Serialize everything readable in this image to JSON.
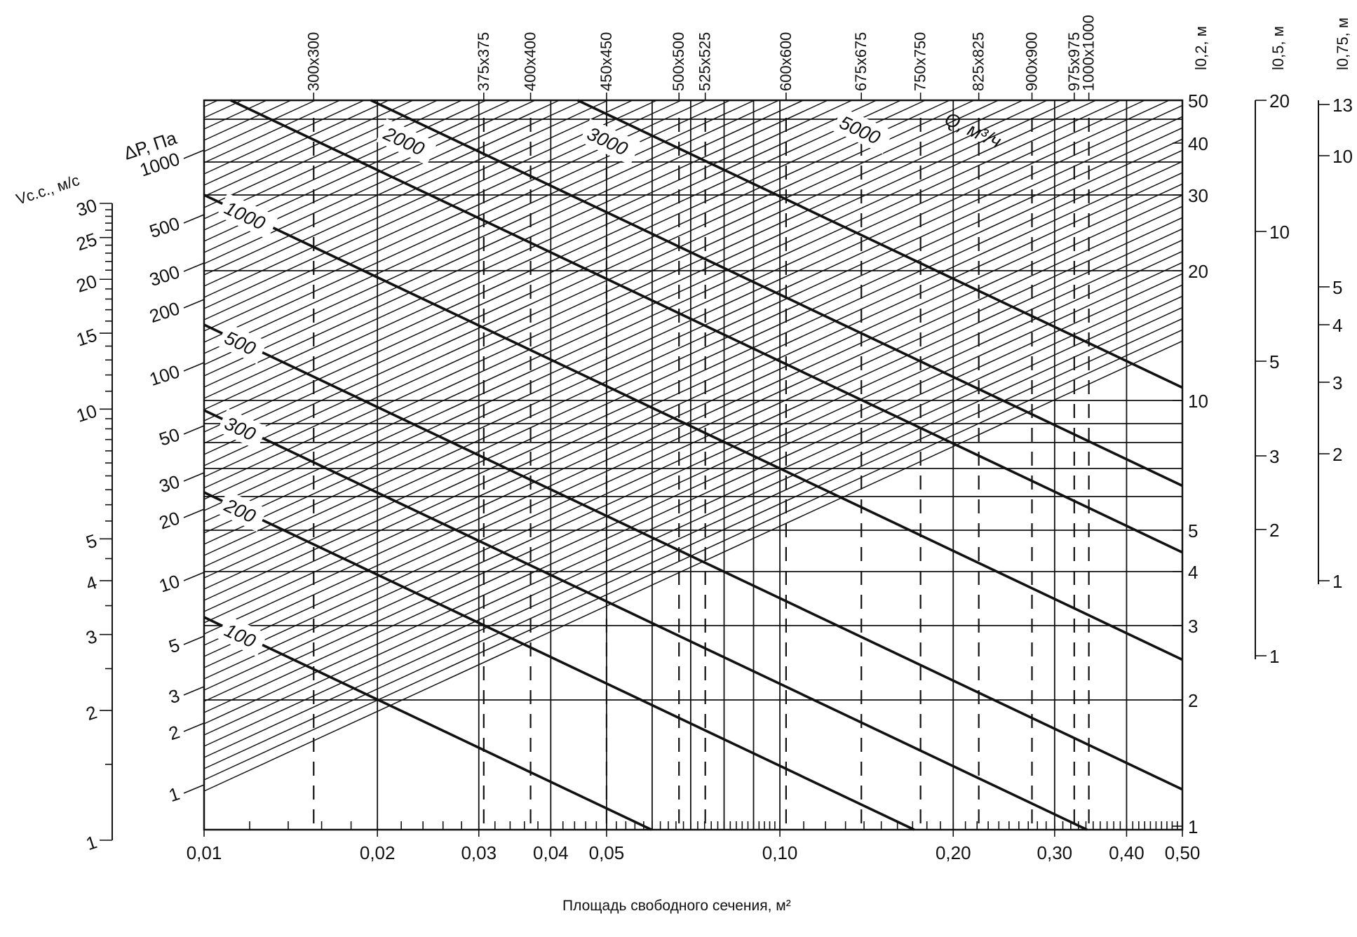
{
  "chart_data": {
    "type": "nomogram",
    "xlabel": "Площадь свободного сечения, м²",
    "xscale": "log",
    "xlim": [
      0.01,
      0.5
    ],
    "x_ticks": [
      "0,01",
      "0,02",
      "0,03",
      "0,04",
      "0,05",
      "0,10",
      "0,20",
      "0,30",
      "0,40",
      "0,50"
    ],
    "x_tick_values": [
      0.01,
      0.02,
      0.03,
      0.04,
      0.05,
      0.1,
      0.2,
      0.3,
      0.4,
      0.5
    ],
    "grille_sizes": [
      {
        "label": "300x300",
        "area": 0.0155
      },
      {
        "label": "375x375",
        "area": 0.0306
      },
      {
        "label": "400x400",
        "area": 0.0369
      },
      {
        "label": "450x450",
        "area": 0.05
      },
      {
        "label": "500x500",
        "area": 0.0668
      },
      {
        "label": "525x525",
        "area": 0.0742
      },
      {
        "label": "600x600",
        "area": 0.1025
      },
      {
        "label": "675x675",
        "area": 0.1385
      },
      {
        "label": "750x750",
        "area": 0.1755
      },
      {
        "label": "825x825",
        "area": 0.2215
      },
      {
        "label": "900x900",
        "area": 0.274
      },
      {
        "label": "975x975",
        "area": 0.3245
      },
      {
        "label": "1000x1000",
        "area": 0.344
      }
    ],
    "velocity_axis": {
      "label": "Vс.с., м/с",
      "scale": "log",
      "range": [
        1,
        30
      ],
      "ticks": [
        "1",
        "2",
        "3",
        "4",
        "5",
        "10",
        "15",
        "20",
        "25",
        "30"
      ]
    },
    "pressure_axis": {
      "label": "ΔР, Па",
      "ticks": [
        "1",
        "2",
        "3",
        "5",
        "10",
        "20",
        "30",
        "50",
        "100",
        "200",
        "300",
        "500",
        "1000"
      ]
    },
    "flow_rate": {
      "label": "Q, м³/ч",
      "values": [
        "100",
        "200",
        "300",
        "500",
        "1000",
        "2000",
        "3000",
        "5000"
      ]
    },
    "throw_axes": [
      {
        "label": "l0,2, м",
        "ticks": [
          "1",
          "2",
          "3",
          "4",
          "5",
          "10",
          "20",
          "30",
          "40",
          "50"
        ]
      },
      {
        "label": "l0,5, м",
        "ticks": [
          "1",
          "2",
          "3",
          "5",
          "10",
          "20"
        ]
      },
      {
        "label": "l0,75, м",
        "ticks": [
          "1",
          "2",
          "3",
          "4",
          "5",
          "10",
          "13"
        ]
      }
    ],
    "grid": true
  }
}
